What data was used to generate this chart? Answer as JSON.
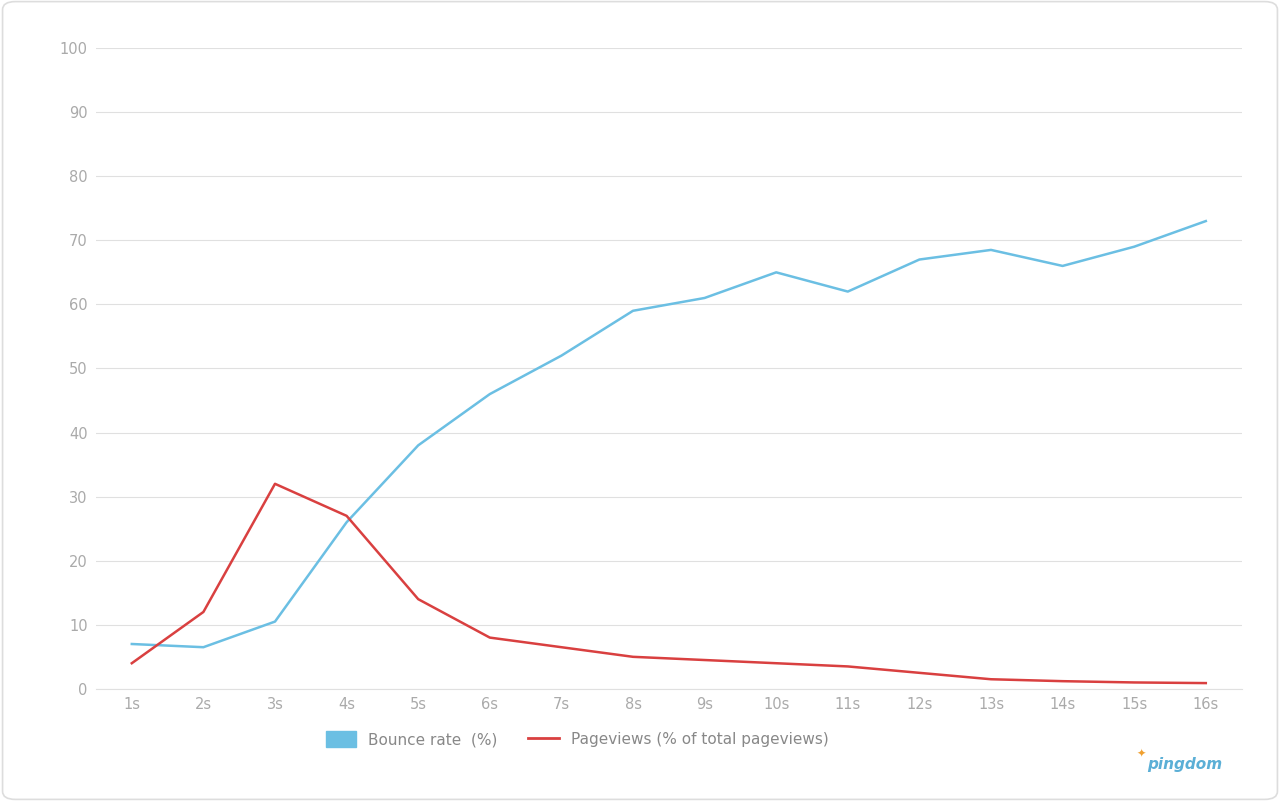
{
  "x_labels": [
    "1s",
    "2s",
    "3s",
    "4s",
    "5s",
    "6s",
    "7s",
    "8s",
    "9s",
    "10s",
    "11s",
    "12s",
    "13s",
    "14s",
    "15s",
    "16s"
  ],
  "x_values": [
    1,
    2,
    3,
    4,
    5,
    6,
    7,
    8,
    9,
    10,
    11,
    12,
    13,
    14,
    15,
    16
  ],
  "bounce_rate": [
    7,
    6.5,
    10.5,
    26,
    38,
    46,
    52,
    59,
    61,
    65,
    62,
    67,
    68.5,
    66,
    69,
    73
  ],
  "pageviews": [
    4,
    12,
    32,
    27,
    14,
    8,
    6.5,
    5,
    4.5,
    4,
    3.5,
    2.5,
    1.5,
    1.2,
    1.0,
    0.9
  ],
  "bounce_color": "#6bbfe3",
  "pageviews_color": "#d94040",
  "background_color": "#ffffff",
  "outer_bg_color": "#f0f0f0",
  "plot_bg_color": "#ffffff",
  "grid_color": "#e0e0e0",
  "tick_color": "#aaaaaa",
  "ylim": [
    0,
    100
  ],
  "yticks": [
    0,
    10,
    20,
    30,
    40,
    50,
    60,
    70,
    80,
    90,
    100
  ],
  "legend_bounce_label": "Bounce rate  (%)",
  "legend_pageviews_label": "Pageviews (% of total pageviews)",
  "line_width": 1.8,
  "font_color": "#888888",
  "pingdom_color": "#5bafd6",
  "border_color": "#dddddd"
}
